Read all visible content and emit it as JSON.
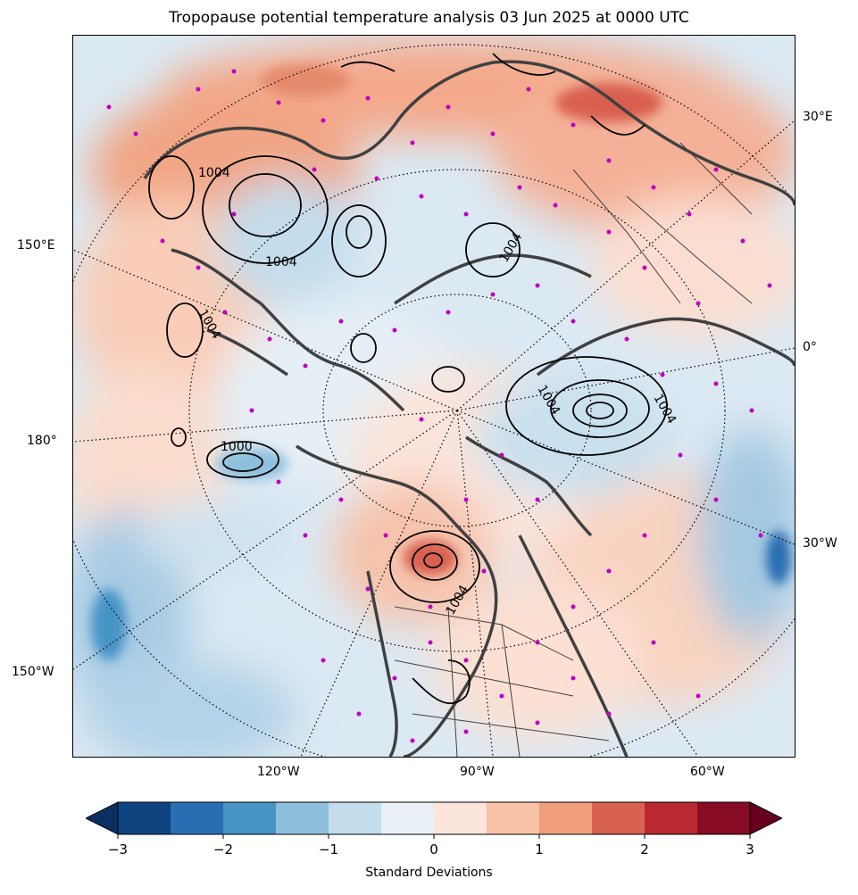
{
  "title": "Tropopause potential temperature analysis 03 Jun 2025 at 0000 UTC",
  "left_labels": [
    "150°E",
    "180°",
    "150°W"
  ],
  "right_labels": [
    "30°E",
    "0°",
    "30°W"
  ],
  "bottom_labels": [
    "120°W",
    "90°W",
    "60°W"
  ],
  "contour_labels": [
    "1004",
    "1004",
    "1004",
    "1004",
    "1000",
    "1004",
    "1004",
    "1004"
  ],
  "colorbar": {
    "label": "Standard Deviations",
    "ticks": [
      "−3",
      "−2",
      "−1",
      "0",
      "1",
      "2",
      "3"
    ],
    "min": -3,
    "max": 3,
    "step": 0.5,
    "under_color": "#0b2f60",
    "over_color": "#67001f",
    "colors": [
      "#0f437f",
      "#2a6eb2",
      "#4794c6",
      "#8ec0dd",
      "#c3ddec",
      "#e8f0f5",
      "#fbe5dc",
      "#f8c2a6",
      "#f19e7d",
      "#d9614f",
      "#b9292f",
      "#870b24"
    ]
  },
  "colors": {
    "land_boundary": "#404040",
    "station_marker": "#c000c0",
    "contour": "#000000"
  }
}
